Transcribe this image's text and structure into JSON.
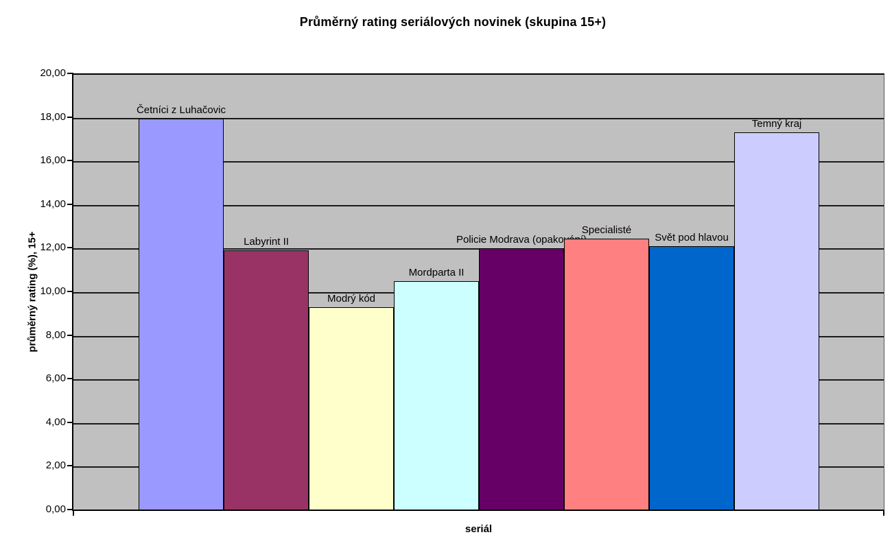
{
  "title": "Průměrný rating seriálových novinek (skupina 15+)",
  "chart_data": {
    "type": "bar",
    "title": "Průměrný rating seriálových novinek (skupina 15+)",
    "xlabel": "seriál",
    "ylabel": "průměrný rating (%), 15+",
    "ylim": [
      0,
      20
    ],
    "ytick_step": 2,
    "ytick_labels": [
      "0,00",
      "2,00",
      "4,00",
      "6,00",
      "8,00",
      "10,00",
      "12,00",
      "14,00",
      "16,00",
      "18,00",
      "20,00"
    ],
    "grid": true,
    "legend_position": "none",
    "plot_background_color": "#c0c0c0",
    "gridline_color": "#1a1a1a",
    "categories": [
      "Četníci z Luhačovic",
      "Labyrint II",
      "Modrý kód",
      "Mordparta II",
      "Policie Modrava (opakování)",
      "Specialisté",
      "Svět pod hlavou",
      "Temný kraj"
    ],
    "values": [
      18.0,
      11.95,
      9.35,
      10.55,
      12.05,
      12.5,
      12.15,
      17.35
    ],
    "bar_colors": [
      "#9999ff",
      "#993366",
      "#ffffcc",
      "#ccffff",
      "#660066",
      "#ff8080",
      "#0066cc",
      "#ccccff"
    ]
  }
}
